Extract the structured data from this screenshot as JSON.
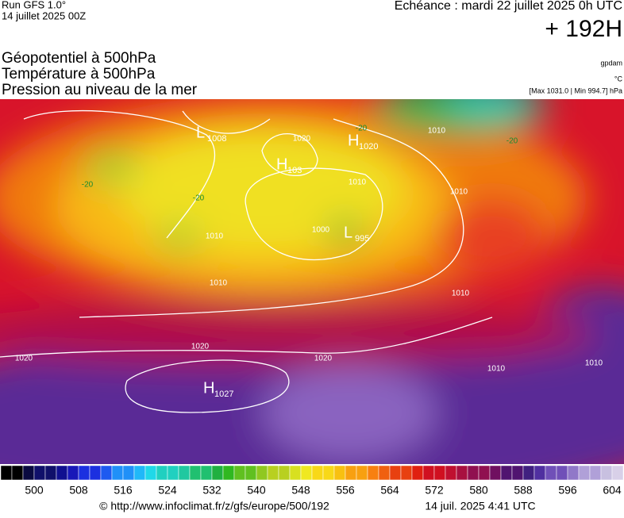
{
  "header": {
    "run": "Run GFS 1.0°",
    "run_date": "14 juillet 2025 00Z",
    "echeance": "Echéance : mardi 22 juillet 2025 0h UTC",
    "lead": "+ 192H"
  },
  "legend": {
    "lines": [
      "Géopotentiel à 500hPa",
      "Température à 500hPa",
      "Pression au niveau de la mer"
    ],
    "units": [
      "gpdam",
      "°C",
      "[Max 1031.0 | Min 994.7] hPa"
    ]
  },
  "map": {
    "centers": [
      {
        "type": "L",
        "value": "1008"
      },
      {
        "type": "H",
        "value": "1020"
      },
      {
        "type": "H",
        "value": "103"
      },
      {
        "type": "L",
        "value": "995"
      },
      {
        "type": "H",
        "value": "1027"
      }
    ],
    "isobar_labels": [
      "1010",
      "1010",
      "1010",
      "1010",
      "1010",
      "1000",
      "1010",
      "1010",
      "1010",
      "1020",
      "1020",
      "1020",
      "1020"
    ],
    "temp_labels": [
      "-20",
      "-20",
      "-20",
      "-20"
    ]
  },
  "colorbar": {
    "ticks": [
      500,
      508,
      516,
      524,
      532,
      540,
      548,
      556,
      564,
      572,
      580,
      588,
      596,
      604
    ]
  },
  "footer": {
    "url": "© http://www.infoclimat.fr/z/gfs/europe/500/192",
    "time": "14 juil. 2025  4:41 UTC"
  }
}
